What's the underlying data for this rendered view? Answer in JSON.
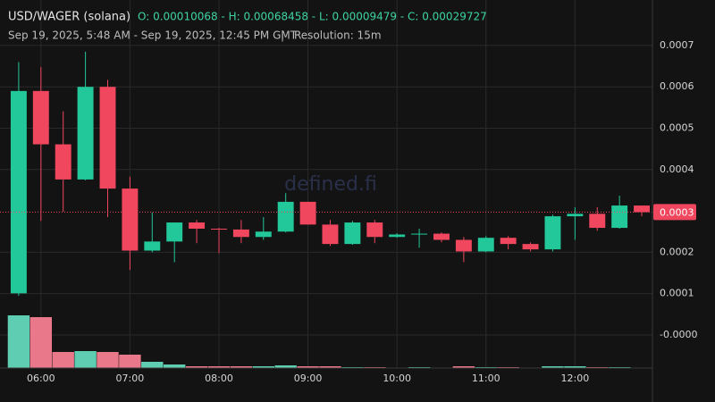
{
  "header": {
    "title": "USD/WAGER (solana)",
    "ohlc": "O: 0.00010068 - H: 0.00068458 - L: 0.00009479 - C: 0.00029727",
    "range": "Sep 19, 2025, 5:48 AM - Sep 19, 2025, 12:45 PM GMT",
    "resolution": "Resolution: 15m",
    "watermark": "defined.fi"
  },
  "chart_data": {
    "type": "candlestick",
    "x": [
      5.75,
      6,
      6.25,
      6.5,
      6.75,
      7,
      7.25,
      7.5,
      7.75,
      8,
      8.25,
      8.5,
      8.75,
      9,
      9.25,
      9.5,
      9.75,
      10,
      10.25,
      10.5,
      10.75,
      11,
      11.25,
      11.5,
      11.75,
      12,
      12.25,
      12.5,
      12.75
    ],
    "open": [
      0.0001007,
      0.00059,
      0.000461,
      0.000376,
      0.0006,
      0.000354,
      0.000204,
      0.000226,
      0.000272,
      0.000257,
      0.000255,
      0.000237,
      0.00025,
      0.000322,
      0.000267,
      0.00022,
      0.000272,
      0.000237,
      0.000243,
      0.000245,
      0.00023,
      0.000202,
      0.000235,
      0.00022,
      0.000207,
      0.000287,
      0.000293,
      0.000259,
      0.000313
    ],
    "high": [
      0.00066,
      0.000648,
      0.000541,
      0.000685,
      0.000617,
      0.000383,
      0.000296,
      0.000272,
      0.000278,
      0.000259,
      0.000278,
      0.000285,
      0.000343,
      0.000322,
      0.000278,
      0.000276,
      0.000278,
      0.000246,
      0.000257,
      0.000248,
      0.000237,
      0.000239,
      0.000239,
      0.000224,
      0.000291,
      0.000309,
      0.000309,
      0.000337,
      0.000313
    ],
    "low": [
      9.48e-05,
      0.000276,
      0.000298,
      0.000374,
      0.000285,
      0.000157,
      0.0002,
      0.000176,
      0.000222,
      0.000198,
      0.000222,
      0.00023,
      0.000248,
      0.000267,
      0.000215,
      0.000218,
      0.000222,
      0.000235,
      0.000211,
      0.000224,
      0.000176,
      0.0002,
      0.000207,
      0.000202,
      0.000202,
      0.00023,
      0.000252,
      0.000257,
      0.000287
    ],
    "close": [
      0.00059,
      0.000461,
      0.000376,
      0.0006,
      0.000354,
      0.000204,
      0.000226,
      0.000272,
      0.000257,
      0.000255,
      0.000237,
      0.00025,
      0.000322,
      0.000267,
      0.00022,
      0.000272,
      0.000237,
      0.000243,
      0.000245,
      0.00023,
      0.000202,
      0.000235,
      0.00022,
      0.000207,
      0.000287,
      0.000293,
      0.000259,
      0.000313,
      0.000297
    ],
    "volume": [
      59,
      57,
      18,
      19,
      18,
      15,
      7,
      4,
      2,
      2,
      2,
      2,
      3,
      2,
      2,
      1,
      1,
      0.5,
      1,
      0.5,
      2,
      1,
      1,
      0.5,
      2,
      2,
      1,
      1,
      0.5
    ],
    "volume_lim": [
      0,
      60
    ],
    "xlim": [
      5.54,
      12.87
    ],
    "xticks": [
      {
        "value": 6,
        "label": "06:00"
      },
      {
        "value": 7,
        "label": "07:00"
      },
      {
        "value": 8,
        "label": "08:00"
      },
      {
        "value": 9,
        "label": "09:00"
      },
      {
        "value": 10,
        "label": "10:00"
      },
      {
        "value": 11,
        "label": "11:00"
      },
      {
        "value": 12,
        "label": "12:00"
      }
    ],
    "ylim": [
      -8e-05,
      0.00081
    ],
    "yticks": [
      {
        "value": 0,
        "label": "-0.0000"
      },
      0.0001,
      0.0002,
      0.0004,
      0.0005,
      0.0006,
      0.0007
    ],
    "last_price": {
      "value": 0.00029727,
      "label": "0.0003"
    },
    "up_color": "#22c79a",
    "down_color": "#f0465e",
    "volume_up_color": "#5ecdb2",
    "volume_down_color": "#e9788a",
    "grid": true
  }
}
